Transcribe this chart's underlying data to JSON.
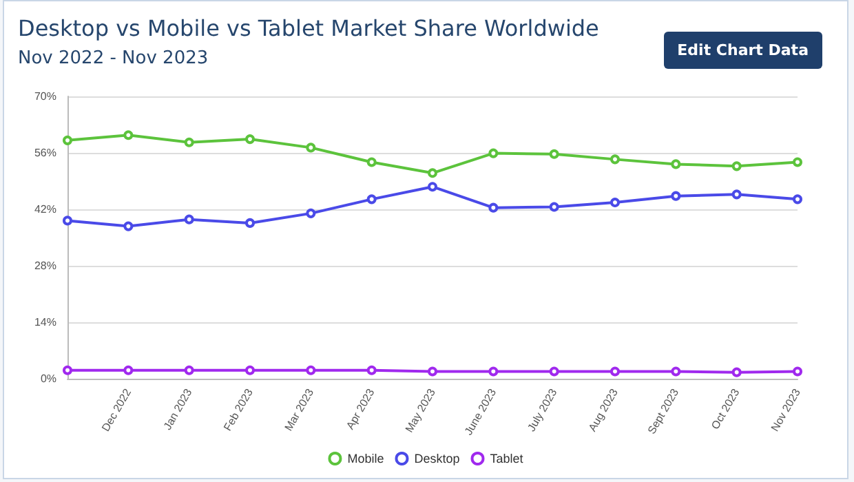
{
  "chart_data": {
    "type": "line",
    "title": "Desktop vs Mobile vs Tablet Market Share Worldwide",
    "subtitle": "Nov 2022 - Nov 2023",
    "annotations": [
      "Edit Chart Data"
    ],
    "categories": [
      null,
      "Dec 2022",
      "Jan 2023",
      "Feb 2023",
      "Mar 2023",
      "Apr 2023",
      "May 2023",
      "June 2023",
      "July 2023",
      "Aug 2023",
      "Sept 2023",
      "Oct 2023",
      "Nov 2023"
    ],
    "series": [
      {
        "name": "Mobile",
        "color": "#5cc33c",
        "values": [
          59.1,
          60.4,
          58.6,
          59.4,
          57.3,
          53.7,
          51.0,
          55.9,
          55.7,
          54.4,
          53.2,
          52.7,
          53.7
        ]
      },
      {
        "name": "Desktop",
        "color": "#4a4ae8",
        "values": [
          39.2,
          37.8,
          39.5,
          38.6,
          41.0,
          44.5,
          47.6,
          42.4,
          42.6,
          43.7,
          45.3,
          45.7,
          44.5
        ]
      },
      {
        "name": "Tablet",
        "color": "#a029ee",
        "values": [
          2.1,
          2.1,
          2.1,
          2.1,
          2.1,
          2.1,
          1.8,
          1.8,
          1.8,
          1.8,
          1.8,
          1.6,
          1.8
        ]
      }
    ],
    "ylim": [
      0,
      70
    ],
    "yticks": [
      {
        "value": 0,
        "label": "0%"
      },
      {
        "value": 14,
        "label": "14%"
      },
      {
        "value": 28,
        "label": "28%"
      },
      {
        "value": 42,
        "label": "42%"
      },
      {
        "value": 56,
        "label": "56%"
      },
      {
        "value": 70,
        "label": "70%"
      }
    ],
    "grid": "y",
    "legend": "bottom",
    "marker": "circle",
    "line_style": "solid"
  }
}
